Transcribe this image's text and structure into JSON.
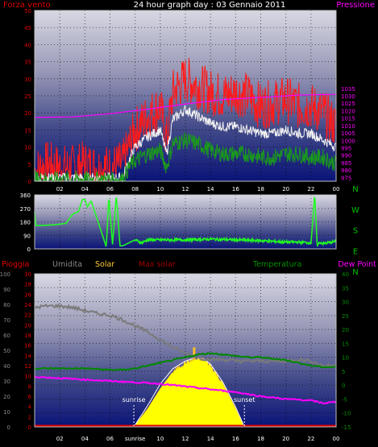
{
  "page": {
    "background": "#000000"
  },
  "title": "24 hour graph day : 03 Gennaio 2011",
  "chart_data": [
    {
      "id": "wind-pressure",
      "type": "line",
      "labels": {
        "left": "Forza vento",
        "right": "Pressione"
      },
      "colors": {
        "left": "#e00000",
        "right": "#ff00ff",
        "title": "#ffffff",
        "tick": "#ffffff"
      },
      "x_ticks": [
        "02",
        "04",
        "06",
        "08",
        "10",
        "12",
        "14",
        "16",
        "18",
        "20",
        "22",
        "00"
      ],
      "left_axis": {
        "ylim": [
          0,
          50
        ],
        "ticks": [
          "0",
          "5",
          "10",
          "15",
          "20",
          "25",
          "30",
          "35",
          "40",
          "45",
          "50"
        ]
      },
      "right_axis": {
        "ylim": [
          972.5,
          1087.5
        ],
        "ticks": [
          "975",
          "980",
          "985",
          "990",
          "995",
          "1000",
          "1005",
          "1010",
          "1015",
          "1020",
          "1025",
          "1030",
          "1035"
        ]
      },
      "series": [
        {
          "color": "#ff1a1a",
          "axis": "left",
          "hours": [
            0,
            1,
            2,
            3,
            4,
            5,
            6,
            7,
            7.5,
            8,
            9,
            10,
            10.5,
            11,
            12,
            13,
            14,
            15,
            16,
            17,
            18,
            19,
            20,
            21,
            22,
            23,
            24
          ],
          "values": [
            3,
            5,
            4,
            4,
            5,
            4,
            4,
            5,
            10,
            15,
            19,
            22,
            12,
            26,
            30,
            28,
            26,
            25,
            26,
            25,
            22,
            23,
            24,
            22,
            22,
            20,
            16
          ],
          "noise": 7
        },
        {
          "color": "#f0f0f0",
          "axis": "left",
          "hours": [
            0,
            2,
            4,
            6,
            7,
            7.5,
            8,
            9,
            10,
            10.5,
            11,
            12,
            13,
            14,
            15,
            16,
            17,
            18,
            19,
            20,
            21,
            22,
            23,
            24
          ],
          "values": [
            1,
            1,
            1,
            1,
            1,
            6,
            10,
            13,
            15,
            8,
            18,
            21,
            19,
            17,
            16,
            16,
            15,
            14,
            14,
            15,
            14,
            14,
            12,
            10
          ],
          "noise": 1.5
        },
        {
          "color": "#1a9a1a",
          "axis": "left",
          "hours": [
            0,
            2,
            4,
            6,
            7,
            7.5,
            8,
            9,
            10,
            10.5,
            11,
            12,
            13,
            14,
            15,
            16,
            17,
            18,
            19,
            20,
            21,
            22,
            23,
            24
          ],
          "values": [
            0.5,
            0.5,
            0.5,
            0.5,
            0.5,
            4,
            6,
            8,
            9,
            4,
            11,
            12,
            11,
            9,
            8,
            8,
            8,
            7,
            7,
            8,
            8,
            7,
            7,
            5
          ],
          "noise": 2.5
        },
        {
          "color": "#ff00ff",
          "axis": "right",
          "hours": [
            0,
            3,
            6,
            9,
            12,
            15,
            18,
            21,
            24
          ],
          "values": [
            1015.5,
            1015.8,
            1018,
            1021,
            1024.5,
            1027.5,
            1029,
            1030.5,
            1031
          ],
          "noise": 0
        }
      ]
    },
    {
      "id": "wind-direction",
      "type": "line",
      "right_letters": [
        "N",
        "W",
        "S",
        "E",
        "N"
      ],
      "letter_color": "#00c000",
      "ylim": [
        0,
        360
      ],
      "y_ticks": [
        "0",
        "90",
        "180",
        "270",
        "360"
      ],
      "series": [
        {
          "color": "#20ff20",
          "hours": [
            0,
            0.1,
            1.5,
            2.5,
            3,
            3.5,
            3.8,
            4,
            4.2,
            4.5,
            5.6,
            5.7,
            5.9,
            6.2,
            6.5,
            6.8,
            7,
            7.5,
            8,
            8.5,
            9,
            10,
            12,
            14,
            16,
            18,
            19,
            20,
            21,
            22,
            22.3,
            22.5,
            22.7,
            23,
            24
          ],
          "values": [
            245,
            155,
            160,
            170,
            230,
            250,
            330,
            330,
            280,
            320,
            40,
            10,
            350,
            30,
            360,
            20,
            20,
            40,
            60,
            40,
            60,
            60,
            60,
            65,
            60,
            55,
            50,
            45,
            45,
            40,
            360,
            20,
            45,
            35,
            50
          ]
        }
      ]
    },
    {
      "id": "rain-temp",
      "type": "line",
      "headers": [
        {
          "text": "Pioggia",
          "color": "#e00000"
        },
        {
          "text": "Umidita",
          "color": "#888888"
        },
        {
          "text": "Solar",
          "color": "#ffcc33"
        },
        {
          "text": "Max solar",
          "color": "#a00000"
        },
        {
          "text": "Temperatura",
          "color": "#009000"
        },
        {
          "text": "Dew Point",
          "color": "#ff00ff"
        }
      ],
      "x_ticks": [
        "02",
        "04",
        "06",
        "sunrise",
        "10",
        "12",
        "14",
        "16",
        "18",
        "20",
        "22",
        "00"
      ],
      "annotations": {
        "sunrise": "sunrise",
        "sunset": "sunset",
        "sunrise_hour": 7.9,
        "sunset_hour": 16.7
      },
      "humidity_axis": {
        "ylim": [
          0,
          100
        ],
        "ticks": [
          "0",
          "10",
          "20",
          "30",
          "40",
          "50",
          "60",
          "70",
          "80",
          "90",
          "100"
        ]
      },
      "rain_axis": {
        "ylim": [
          0,
          30
        ],
        "ticks": [
          "0",
          "2",
          "4",
          "6",
          "8",
          "10",
          "12",
          "14",
          "16",
          "18",
          "20",
          "22",
          "24",
          "26",
          "28",
          "30"
        ]
      },
      "temp_axis": {
        "ylim": [
          -15,
          40
        ],
        "ticks": [
          "-15",
          "-10",
          "-5",
          "0",
          "5",
          "10",
          "15",
          "20",
          "25",
          "30",
          "35",
          "40"
        ]
      },
      "series": [
        {
          "name": "Umidita",
          "color": "#7a7a7a",
          "axis": "humidity",
          "hours": [
            0,
            1,
            2,
            3,
            4,
            5,
            6,
            7,
            8,
            9,
            10,
            11,
            12,
            13,
            14,
            15,
            16,
            17,
            18,
            19,
            20,
            21,
            22,
            23,
            24
          ],
          "values": [
            78,
            79,
            79,
            78,
            76,
            74,
            73,
            70,
            66,
            62,
            57,
            52,
            48,
            45,
            44,
            44,
            43,
            43,
            43,
            43,
            43,
            44,
            43,
            40,
            40
          ]
        },
        {
          "name": "Temperatura",
          "color": "#008800",
          "axis": "temp",
          "hours": [
            0,
            2,
            4,
            6,
            7,
            8,
            9,
            10,
            11,
            12,
            13,
            14,
            15,
            16,
            17,
            18,
            19,
            20,
            21,
            22,
            23,
            24
          ],
          "values": [
            6,
            6,
            6,
            5.5,
            5.5,
            6,
            7,
            8,
            9,
            10,
            11,
            11.5,
            11,
            10.5,
            10,
            10,
            9.5,
            9,
            8,
            7,
            6.5,
            6.5
          ]
        },
        {
          "name": "Dew Point",
          "color": "#ff00ff",
          "axis": "temp",
          "hours": [
            0,
            2,
            4,
            6,
            8,
            10,
            12,
            14,
            16,
            18,
            20,
            22,
            23,
            24
          ],
          "values": [
            3,
            2.5,
            2,
            1.5,
            1,
            0.5,
            -0.5,
            -1.5,
            -2.5,
            -4,
            -5,
            -5.5,
            -6.5,
            -6
          ]
        },
        {
          "name": "Pioggia",
          "color": "#e00000",
          "axis": "rain",
          "hours": [
            0,
            24
          ],
          "values": [
            0.2,
            0.2
          ]
        }
      ],
      "solar": {
        "fill": "#ffff00",
        "max_color": "#ffffff",
        "hours": [
          7.9,
          9,
          10,
          11,
          12,
          12.8,
          13.5,
          14,
          15,
          16,
          16.7
        ],
        "values": [
          0,
          12,
          25,
          36,
          42,
          44,
          44,
          40,
          28,
          12,
          0
        ],
        "max_hours": [
          7.9,
          9,
          10,
          11,
          12,
          12.8,
          13.5,
          14,
          15,
          16,
          16.7
        ],
        "max_values": [
          0,
          14,
          28,
          38,
          43,
          45,
          44,
          41,
          29,
          13,
          0
        ],
        "spike_hour": 12.7,
        "spike_value": 52,
        "glow_color": "#ffc020"
      }
    }
  ]
}
